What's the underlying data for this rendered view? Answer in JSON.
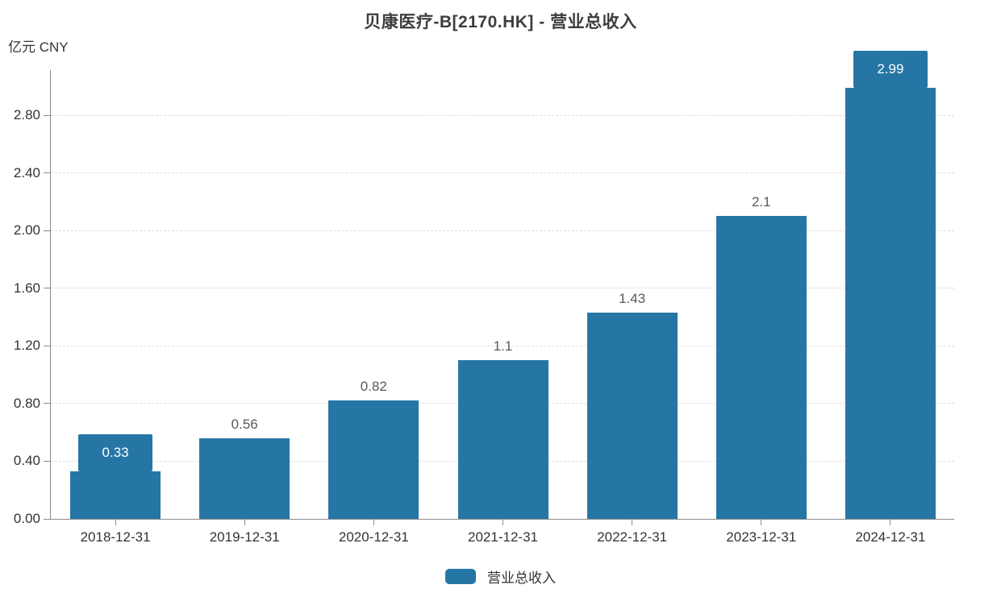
{
  "title": "贝康医疗-B[2170.HK] - 营业总收入",
  "unit_label": "亿元  CNY",
  "colors": {
    "bar": "#2676a5",
    "axis": "#8b8b8b",
    "grid": "#dddddd",
    "axis_label": "#333333",
    "bar_label": "#595959",
    "title": "#3d3d3d",
    "box_text": "#ffffff",
    "legend_text": "#333333"
  },
  "chart_data": {
    "type": "bar",
    "title": "贝康医疗-B[2170.HK] - 营业总收入",
    "xlabel": "",
    "ylabel": "亿元 CNY",
    "categories": [
      "2018-12-31",
      "2019-12-31",
      "2020-12-31",
      "2021-12-31",
      "2022-12-31",
      "2023-12-31",
      "2024-12-31"
    ],
    "series": [
      {
        "name": "营业总收入",
        "values": [
          0.33,
          0.56,
          0.82,
          1.1,
          1.43,
          2.1,
          2.99
        ]
      }
    ],
    "labels": [
      "0.33",
      "0.56",
      "0.82",
      "1.1",
      "1.43",
      "2.1",
      "2.99"
    ],
    "highlight_boxed_indices": [
      0,
      6
    ],
    "yticks": [
      {
        "value": 0.0,
        "label": "0.00"
      },
      {
        "value": 0.4,
        "label": "0.40"
      },
      {
        "value": 0.8,
        "label": "0.80"
      },
      {
        "value": 1.2,
        "label": "1.20"
      },
      {
        "value": 1.6,
        "label": "1.60"
      },
      {
        "value": 2.0,
        "label": "2.00"
      },
      {
        "value": 2.4,
        "label": "2.40"
      },
      {
        "value": 2.8,
        "label": "2.80"
      }
    ],
    "ylim": [
      0,
      3.12
    ],
    "grid": true,
    "grid_style": "dashed",
    "legend_position": "bottom"
  },
  "legend": {
    "items": [
      {
        "label": "营业总收入",
        "color": "#2676a5"
      }
    ]
  }
}
